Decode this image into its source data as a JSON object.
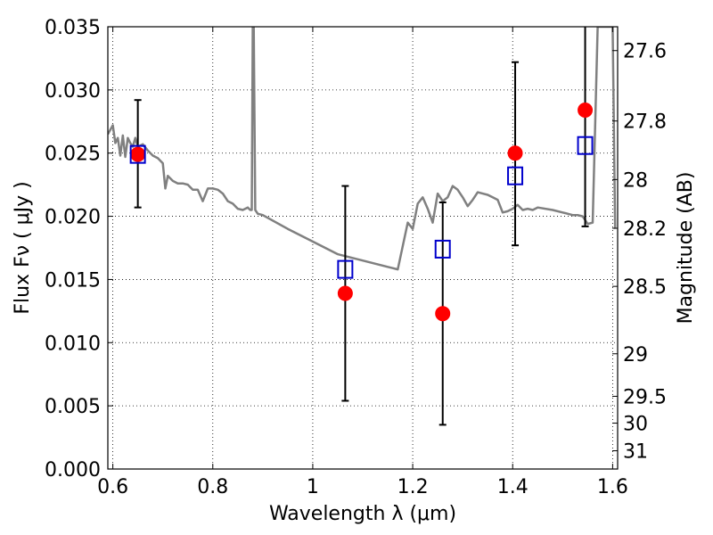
{
  "chart_data": {
    "type": "scatter",
    "title": "",
    "xlabel": "Wavelength  λ (μm)",
    "ylabel": "Flux  Fν  ( μJy )",
    "y2label": "Magnitude (AB)",
    "xlim": [
      0.59,
      1.61
    ],
    "ylim": [
      0.0,
      0.035
    ],
    "grid": true,
    "x_ticks": [
      0.6,
      0.8,
      1.0,
      1.2,
      1.4,
      1.6
    ],
    "x_tick_labels": [
      "0.6",
      "0.8",
      "1",
      "1.2",
      "1.4",
      "1.6"
    ],
    "y_ticks": [
      0.0,
      0.005,
      0.01,
      0.015,
      0.02,
      0.025,
      0.03,
      0.035
    ],
    "y_tick_labels": [
      "0.000",
      "0.005",
      "0.010",
      "0.015",
      "0.020",
      "0.025",
      "0.030",
      "0.035"
    ],
    "y2_ticks": [
      27.6,
      27.8,
      28.0,
      28.2,
      28.5,
      29.0,
      29.5,
      30.0,
      31.0
    ],
    "y2_tick_labels": [
      "27.6",
      "27.8",
      "28",
      "28.2",
      "28.5",
      "29",
      "29.5",
      "30",
      "31"
    ],
    "series": [
      {
        "kind": "line",
        "color": "#808080",
        "x": [
          0.59,
          0.6,
          0.605,
          0.61,
          0.615,
          0.62,
          0.625,
          0.63,
          0.635,
          0.64,
          0.645,
          0.65,
          0.66,
          0.67,
          0.68,
          0.69,
          0.7,
          0.705,
          0.71,
          0.72,
          0.73,
          0.74,
          0.75,
          0.76,
          0.77,
          0.78,
          0.79,
          0.8,
          0.81,
          0.82,
          0.83,
          0.84,
          0.85,
          0.86,
          0.87,
          0.875,
          0.878,
          0.88,
          0.882,
          0.885,
          0.89,
          0.9,
          0.95,
          1.0,
          1.05,
          1.1,
          1.15,
          1.16,
          1.17,
          1.19,
          1.2,
          1.21,
          1.22,
          1.23,
          1.24,
          1.25,
          1.26,
          1.27,
          1.28,
          1.29,
          1.3,
          1.31,
          1.32,
          1.33,
          1.34,
          1.35,
          1.36,
          1.37,
          1.38,
          1.39,
          1.4,
          1.41,
          1.42,
          1.43,
          1.44,
          1.45,
          1.48,
          1.5,
          1.51,
          1.52,
          1.53,
          1.54,
          1.55,
          1.56,
          1.57,
          1.58,
          1.59,
          1.6,
          1.605
        ],
        "y": [
          0.0265,
          0.0272,
          0.0258,
          0.0262,
          0.0248,
          0.0264,
          0.0247,
          0.0262,
          0.0258,
          0.0255,
          0.0262,
          0.0255,
          0.0257,
          0.0252,
          0.0248,
          0.0246,
          0.0242,
          0.0222,
          0.0232,
          0.0228,
          0.0226,
          0.0226,
          0.0225,
          0.0221,
          0.0221,
          0.0212,
          0.0222,
          0.0222,
          0.0221,
          0.0218,
          0.0212,
          0.021,
          0.0206,
          0.0205,
          0.0207,
          0.0205,
          0.0205,
          0.035,
          0.035,
          0.0205,
          0.0202,
          0.0201,
          0.019,
          0.018,
          0.017,
          0.0165,
          0.016,
          0.0159,
          0.0158,
          0.0195,
          0.019,
          0.021,
          0.0215,
          0.0206,
          0.0195,
          0.0218,
          0.0212,
          0.0215,
          0.0224,
          0.0221,
          0.0215,
          0.0208,
          0.0213,
          0.0219,
          0.0218,
          0.0217,
          0.0215,
          0.0213,
          0.0203,
          0.0204,
          0.0206,
          0.0209,
          0.0205,
          0.0206,
          0.0205,
          0.0207,
          0.0205,
          0.0203,
          0.0202,
          0.0201,
          0.0201,
          0.02,
          0.0194,
          0.0195,
          0.035,
          0.035,
          0.035,
          0.035,
          0.019
        ]
      },
      {
        "kind": "points",
        "marker": "circle",
        "color": "#ff0000",
        "x": [
          0.65,
          1.065,
          1.26,
          1.405,
          1.545
        ],
        "y": [
          0.0249,
          0.0139,
          0.0123,
          0.025,
          0.0284
        ]
      },
      {
        "kind": "points",
        "marker": "square",
        "color": "#0000cc",
        "x": [
          0.65,
          1.065,
          1.26,
          1.405,
          1.545
        ],
        "y": [
          0.0249,
          0.0158,
          0.0174,
          0.0232,
          0.0256
        ]
      },
      {
        "kind": "errorbars",
        "color": "#000000",
        "x": [
          0.65,
          1.065,
          1.26,
          1.405,
          1.545
        ],
        "ylow": [
          0.0207,
          0.0054,
          0.0035,
          0.0177,
          0.0192
        ],
        "yhigh": [
          0.0292,
          0.0224,
          0.0211,
          0.0322,
          0.036
        ]
      }
    ]
  }
}
